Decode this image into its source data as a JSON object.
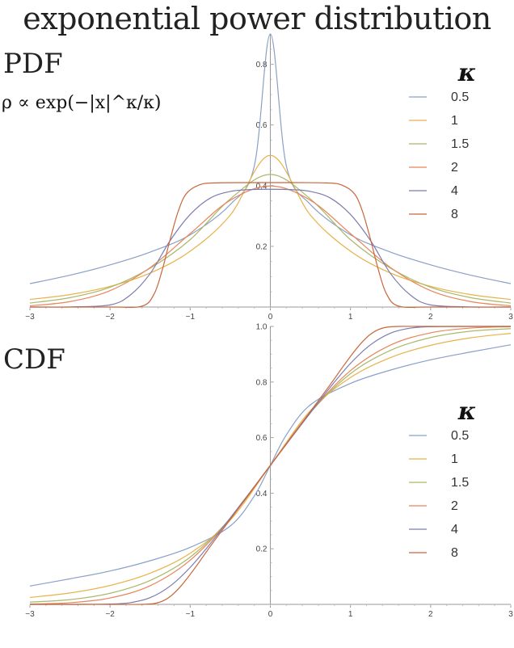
{
  "title": "exponential power distribution",
  "formula": "ρ ∝ exp(−|x|^κ/κ)",
  "colors": [
    "#8aa0c8",
    "#e8b24a",
    "#a9b96a",
    "#e8855a",
    "#7c7cb0",
    "#c8663a"
  ],
  "chart_data": [
    {
      "type": "line",
      "label": "PDF",
      "xlim": [
        -3,
        3
      ],
      "ylim": [
        0,
        0.9
      ],
      "xticks": [
        "-3",
        "-2",
        "-1",
        "0",
        "1",
        "2",
        "3"
      ],
      "yticks": [
        "0.2",
        "0.4",
        "0.6",
        "0.8"
      ],
      "legend_title": "κ",
      "legend_position": "right",
      "series": [
        {
          "name": "0.5",
          "x": [
            -3,
            -2.5,
            -2,
            -1.5,
            -1,
            -0.5,
            -0.2,
            0,
            0.2,
            0.5,
            1,
            1.5,
            2,
            2.5,
            3
          ],
          "y": [
            0.077,
            0.105,
            0.139,
            0.181,
            0.238,
            0.338,
            0.465,
            0.9,
            0.465,
            0.338,
            0.238,
            0.181,
            0.139,
            0.105,
            0.077
          ]
        },
        {
          "name": "1",
          "x": [
            -3,
            -2.5,
            -2,
            -1.5,
            -1,
            -0.5,
            0,
            0.5,
            1,
            1.5,
            2,
            2.5,
            3
          ],
          "y": [
            0.025,
            0.041,
            0.068,
            0.112,
            0.184,
            0.303,
            0.5,
            0.303,
            0.184,
            0.112,
            0.068,
            0.041,
            0.025
          ]
        },
        {
          "name": "1.5",
          "x": [
            -3,
            -2.5,
            -2,
            -1.5,
            -1,
            -0.5,
            0,
            0.5,
            1,
            1.5,
            2,
            2.5,
            3
          ],
          "y": [
            0.013,
            0.031,
            0.065,
            0.128,
            0.222,
            0.356,
            0.437,
            0.356,
            0.222,
            0.128,
            0.065,
            0.031,
            0.013
          ]
        },
        {
          "name": "2",
          "x": [
            -3,
            -2.5,
            -2,
            -1.5,
            -1,
            -0.5,
            0,
            0.5,
            1,
            1.5,
            2,
            2.5,
            3
          ],
          "y": [
            0.004,
            0.018,
            0.054,
            0.13,
            0.242,
            0.352,
            0.399,
            0.352,
            0.242,
            0.13,
            0.054,
            0.018,
            0.004
          ]
        },
        {
          "name": "4",
          "x": [
            -3,
            -2.5,
            -2,
            -1.75,
            -1.5,
            -1.25,
            -1,
            -0.75,
            -0.5,
            -0.25,
            0,
            0.25,
            0.5,
            0.75,
            1,
            1.25,
            1.5,
            1.75,
            2,
            2.5,
            3
          ],
          "y": [
            0,
            0.0004,
            0.007,
            0.039,
            0.11,
            0.219,
            0.305,
            0.359,
            0.381,
            0.387,
            0.388,
            0.387,
            0.381,
            0.359,
            0.305,
            0.219,
            0.11,
            0.039,
            0.007,
            0.0004,
            0
          ]
        },
        {
          "name": "8",
          "x": [
            -3,
            -2,
            -1.6,
            -1.45,
            -1.35,
            -1.25,
            -1.15,
            -1.05,
            -0.9,
            -0.7,
            0,
            0.7,
            0.9,
            1.05,
            1.15,
            1.25,
            1.35,
            1.45,
            1.6,
            2,
            3
          ],
          "y": [
            0,
            0,
            0.003,
            0.043,
            0.121,
            0.223,
            0.315,
            0.373,
            0.401,
            0.409,
            0.41,
            0.409,
            0.401,
            0.373,
            0.315,
            0.223,
            0.121,
            0.043,
            0.003,
            0,
            0
          ]
        }
      ]
    },
    {
      "type": "line",
      "label": "CDF",
      "xlim": [
        -3,
        3
      ],
      "ylim": [
        0,
        1.0
      ],
      "xticks": [
        "-3",
        "-2",
        "-1",
        "0",
        "1",
        "2",
        "3"
      ],
      "yticks": [
        "0.2",
        "0.4",
        "0.6",
        "0.8",
        "1.0"
      ],
      "legend_title": "κ",
      "legend_position": "right",
      "series": [
        {
          "name": "0.5",
          "x": [
            -3,
            -2.5,
            -2,
            -1.5,
            -1,
            -0.5,
            -0.2,
            0,
            0.2,
            0.5,
            1,
            1.5,
            2,
            2.5,
            3
          ],
          "y": [
            0.066,
            0.092,
            0.12,
            0.157,
            0.205,
            0.282,
            0.39,
            0.5,
            0.61,
            0.718,
            0.795,
            0.843,
            0.88,
            0.908,
            0.934
          ]
        },
        {
          "name": "1",
          "x": [
            -3,
            -2.5,
            -2,
            -1.5,
            -1,
            -0.5,
            0,
            0.5,
            1,
            1.5,
            2,
            2.5,
            3
          ],
          "y": [
            0.025,
            0.041,
            0.068,
            0.112,
            0.184,
            0.303,
            0.5,
            0.697,
            0.816,
            0.888,
            0.932,
            0.959,
            0.975
          ]
        },
        {
          "name": "1.5",
          "x": [
            -3,
            -2.5,
            -2,
            -1.5,
            -1,
            -0.5,
            0,
            0.5,
            1,
            1.5,
            2,
            2.5,
            3
          ],
          "y": [
            0.008,
            0.017,
            0.04,
            0.086,
            0.17,
            0.31,
            0.5,
            0.69,
            0.83,
            0.914,
            0.96,
            0.983,
            0.992
          ]
        },
        {
          "name": "2",
          "x": [
            -3,
            -2.5,
            -2,
            -1.5,
            -1,
            -0.5,
            0,
            0.5,
            1,
            1.5,
            2,
            2.5,
            3
          ],
          "y": [
            0.001,
            0.006,
            0.023,
            0.067,
            0.159,
            0.309,
            0.5,
            0.691,
            0.841,
            0.933,
            0.977,
            0.994,
            0.999
          ]
        },
        {
          "name": "4",
          "x": [
            -3,
            -2.5,
            -2,
            -1.75,
            -1.5,
            -1.25,
            -1,
            -0.75,
            -0.5,
            -0.25,
            0,
            0.25,
            0.5,
            0.75,
            1,
            1.25,
            1.5,
            1.75,
            2,
            2.5,
            3
          ],
          "y": [
            0,
            0,
            0.001,
            0.006,
            0.024,
            0.066,
            0.133,
            0.218,
            0.311,
            0.405,
            0.5,
            0.595,
            0.689,
            0.782,
            0.867,
            0.934,
            0.976,
            0.994,
            0.999,
            1.0,
            1.0
          ]
        },
        {
          "name": "8",
          "x": [
            -3,
            -2,
            -1.6,
            -1.45,
            -1.35,
            -1.25,
            -1.15,
            -1.05,
            -0.9,
            -0.7,
            0,
            0.7,
            0.9,
            1.05,
            1.15,
            1.25,
            1.35,
            1.45,
            1.6,
            2,
            3
          ],
          "y": [
            0,
            0,
            0,
            0.003,
            0.011,
            0.028,
            0.055,
            0.089,
            0.147,
            0.228,
            0.5,
            0.772,
            0.853,
            0.911,
            0.945,
            0.972,
            0.989,
            0.997,
            1.0,
            1.0,
            1.0
          ]
        }
      ]
    }
  ]
}
